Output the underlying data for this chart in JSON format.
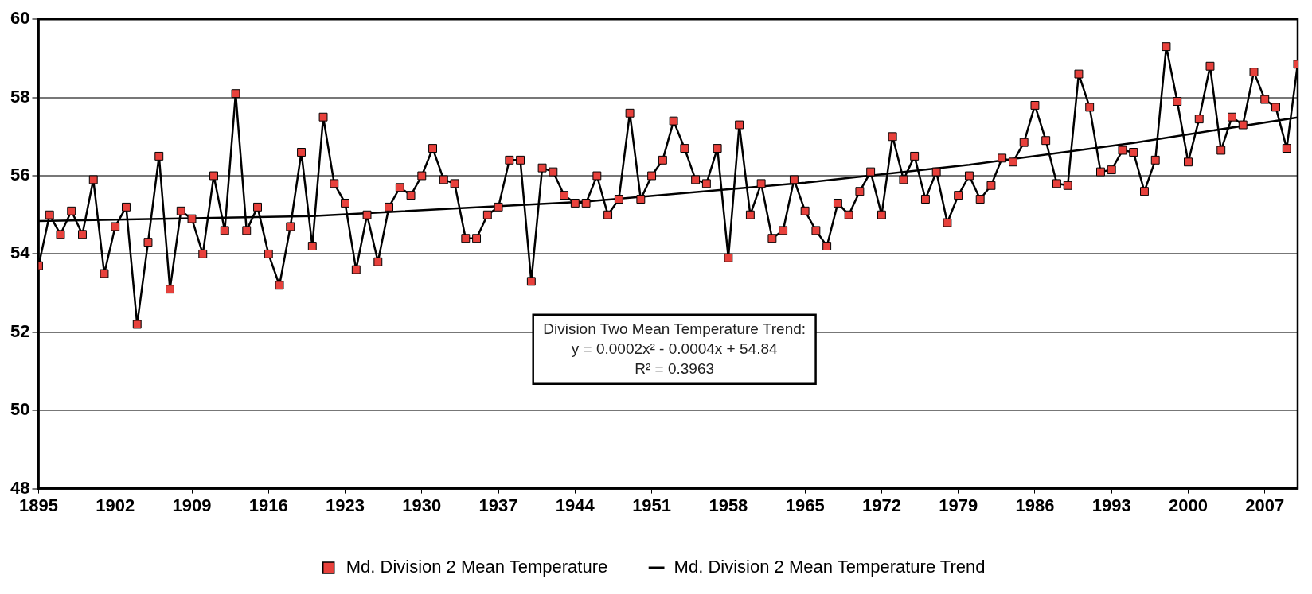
{
  "chart_data": {
    "type": "line",
    "x": [
      1895,
      1896,
      1897,
      1898,
      1899,
      1900,
      1901,
      1902,
      1903,
      1904,
      1905,
      1906,
      1907,
      1908,
      1909,
      1910,
      1911,
      1912,
      1913,
      1914,
      1915,
      1916,
      1917,
      1918,
      1919,
      1920,
      1921,
      1922,
      1923,
      1924,
      1925,
      1926,
      1927,
      1928,
      1929,
      1930,
      1931,
      1932,
      1933,
      1934,
      1935,
      1936,
      1937,
      1938,
      1939,
      1940,
      1941,
      1942,
      1943,
      1944,
      1945,
      1946,
      1947,
      1948,
      1949,
      1950,
      1951,
      1952,
      1953,
      1954,
      1955,
      1956,
      1957,
      1958,
      1959,
      1960,
      1961,
      1962,
      1963,
      1964,
      1965,
      1966,
      1967,
      1968,
      1969,
      1970,
      1971,
      1972,
      1973,
      1974,
      1975,
      1976,
      1977,
      1978,
      1979,
      1980,
      1981,
      1982,
      1983,
      1984,
      1985,
      1986,
      1987,
      1988,
      1989,
      1990,
      1991,
      1992,
      1993,
      1994,
      1995,
      1996,
      1997,
      1998,
      1999,
      2000,
      2001,
      2002,
      2003,
      2004,
      2005,
      2006,
      2007,
      2008,
      2009,
      2010
    ],
    "series": [
      {
        "name": "Md. Division 2 Mean Temperature",
        "color": "#e8413c",
        "marker": "square",
        "values": [
          53.7,
          55.0,
          54.5,
          55.1,
          54.5,
          55.9,
          53.5,
          54.7,
          55.2,
          52.2,
          54.3,
          56.5,
          53.1,
          55.1,
          54.9,
          54.0,
          56.0,
          54.6,
          58.1,
          54.6,
          55.2,
          54.0,
          53.2,
          54.7,
          56.6,
          54.2,
          57.5,
          55.8,
          55.3,
          53.6,
          55.0,
          53.8,
          55.2,
          55.7,
          55.5,
          56.0,
          56.7,
          55.9,
          55.8,
          54.4,
          54.4,
          55.0,
          55.2,
          56.4,
          56.4,
          53.3,
          56.2,
          56.1,
          55.5,
          55.3,
          55.3,
          56.0,
          55.0,
          55.4,
          57.6,
          55.4,
          56.0,
          56.4,
          57.4,
          56.7,
          55.9,
          55.8,
          56.7,
          53.9,
          57.3,
          55.0,
          55.8,
          54.4,
          54.6,
          55.9,
          55.1,
          54.6,
          54.2,
          55.3,
          55.0,
          55.6,
          56.1,
          55.0,
          57.0,
          55.9,
          56.5,
          55.4,
          56.1,
          54.8,
          55.5,
          56.0,
          55.4,
          55.75,
          56.45,
          56.35,
          56.85,
          57.8,
          56.9,
          55.8,
          55.75,
          58.6,
          57.75,
          56.1,
          56.15,
          56.65,
          56.6,
          55.6,
          56.4,
          59.3,
          57.9,
          56.35,
          57.45,
          58.8,
          56.65,
          57.5,
          57.3,
          58.65,
          57.95,
          57.75,
          56.7,
          58.85
        ]
      },
      {
        "name": "Md. Division 2 Mean Temperature Trend",
        "color": "#000000",
        "marker": "none",
        "x": [
          1895,
          1920,
          1945,
          1965,
          1980,
          1995,
          2010
        ],
        "values": [
          54.84,
          54.97,
          55.34,
          55.82,
          56.28,
          56.84,
          57.49
        ]
      }
    ],
    "xlim": [
      1895,
      2010
    ],
    "xticks": [
      1895,
      1902,
      1909,
      1916,
      1923,
      1930,
      1937,
      1944,
      1951,
      1958,
      1965,
      1972,
      1979,
      1986,
      1993,
      2000,
      2007
    ],
    "ylim": [
      48,
      60
    ],
    "yticks": [
      48,
      50,
      52,
      54,
      56,
      58,
      60
    ],
    "grid": "y",
    "legend": "bottom",
    "annotations": [
      "Division Two Mean Temperature Trend:",
      "y = 0.0002x² - 0.0004x + 54.84",
      "R² = 0.3963"
    ]
  }
}
